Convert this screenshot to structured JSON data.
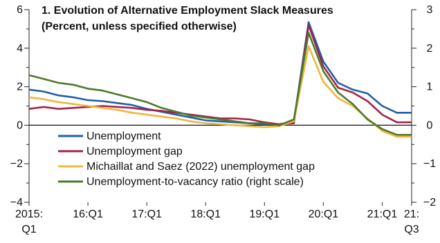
{
  "chart_data": {
    "type": "line",
    "title": "1. Evolution of Alternative Employment Slack Measures",
    "subtitle": "(Percent, unless specified otherwise)",
    "x": [
      "2015:Q1",
      "2015:Q2",
      "2015:Q3",
      "2015:Q4",
      "2016:Q1",
      "2016:Q2",
      "2016:Q3",
      "2016:Q4",
      "2017:Q1",
      "2017:Q2",
      "2017:Q3",
      "2017:Q4",
      "2018:Q1",
      "2018:Q2",
      "2018:Q3",
      "2018:Q4",
      "2019:Q1",
      "2019:Q2",
      "2019:Q3",
      "2019:Q4",
      "2020:Q1",
      "2020:Q2",
      "2020:Q3",
      "2020:Q4",
      "2021:Q1",
      "2021:Q2",
      "2021:Q3"
    ],
    "x_tick_labels": [
      {
        "index": 0,
        "lines": [
          "2015:",
          "Q1"
        ]
      },
      {
        "index": 4,
        "lines": [
          "16:Q1"
        ]
      },
      {
        "index": 8,
        "lines": [
          "17:Q1"
        ]
      },
      {
        "index": 12,
        "lines": [
          "18:Q1"
        ]
      },
      {
        "index": 16,
        "lines": [
          "19:Q1"
        ]
      },
      {
        "index": 20,
        "lines": [
          "20:Q1"
        ]
      },
      {
        "index": 24,
        "lines": [
          "21:Q1"
        ]
      },
      {
        "index": 26,
        "lines": [
          "21:",
          "Q3"
        ]
      }
    ],
    "y_left": {
      "ylim": [
        -4,
        6
      ],
      "ticks": [
        6,
        4,
        2,
        0,
        -2,
        -4
      ],
      "tick_labels": [
        "6",
        "4",
        "2",
        "0",
        "−2",
        "−4"
      ]
    },
    "y_right": {
      "ylim": [
        -2,
        3
      ],
      "ticks": [
        3,
        2,
        1,
        0,
        -1,
        -2
      ],
      "tick_labels": [
        "3",
        "2",
        "1",
        "0",
        "−1",
        "−2"
      ]
    },
    "zero_line": true,
    "legend_placement": "bottom-left",
    "series": [
      {
        "name": "Unemployment",
        "axis": "left",
        "color": "#1f5fa6",
        "values": [
          1.85,
          1.75,
          1.55,
          1.45,
          1.3,
          1.25,
          1.15,
          1.05,
          0.85,
          0.7,
          0.55,
          0.4,
          0.25,
          0.2,
          0.15,
          0.1,
          0.05,
          0.05,
          0.2,
          5.35,
          3.3,
          2.2,
          1.85,
          1.65,
          1.0,
          0.65,
          0.65
        ]
      },
      {
        "name": "Unemployment gap",
        "axis": "left",
        "color": "#a3224a",
        "values": [
          0.85,
          0.95,
          0.85,
          0.9,
          0.95,
          1.0,
          0.95,
          0.9,
          0.8,
          0.75,
          0.65,
          0.55,
          0.45,
          0.35,
          0.35,
          0.3,
          0.15,
          0.05,
          0.1,
          5.2,
          3.05,
          1.95,
          1.7,
          1.25,
          0.55,
          0.15,
          0.15
        ]
      },
      {
        "name": "Michaillat and Saez (2022) unemployment gap",
        "axis": "left",
        "color": "#f2b43c",
        "values": [
          1.45,
          1.35,
          1.2,
          1.1,
          1.0,
          0.9,
          0.8,
          0.65,
          0.55,
          0.45,
          0.35,
          0.2,
          0.1,
          0.05,
          0.0,
          -0.05,
          -0.1,
          -0.05,
          0.2,
          4.1,
          2.25,
          1.4,
          1.0,
          0.35,
          -0.3,
          -0.6,
          -0.6
        ]
      },
      {
        "name": "Unemployment-to-vacancy ratio (right scale)",
        "axis": "right",
        "color": "#4a7a2a",
        "values": [
          1.3,
          1.2,
          1.1,
          1.05,
          0.95,
          0.9,
          0.8,
          0.7,
          0.6,
          0.45,
          0.35,
          0.25,
          0.2,
          0.15,
          0.1,
          0.05,
          0.05,
          0.0,
          0.15,
          2.4,
          1.4,
          0.85,
          0.55,
          0.15,
          -0.1,
          -0.25,
          -0.25
        ]
      }
    ]
  }
}
